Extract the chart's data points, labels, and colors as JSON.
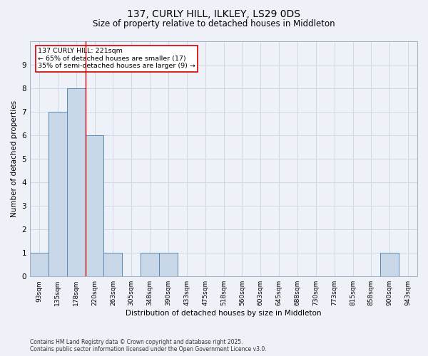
{
  "title1": "137, CURLY HILL, ILKLEY, LS29 0DS",
  "title2": "Size of property relative to detached houses in Middleton",
  "xlabel": "Distribution of detached houses by size in Middleton",
  "ylabel": "Number of detached properties",
  "categories": [
    "93sqm",
    "135sqm",
    "178sqm",
    "220sqm",
    "263sqm",
    "305sqm",
    "348sqm",
    "390sqm",
    "433sqm",
    "475sqm",
    "518sqm",
    "560sqm",
    "603sqm",
    "645sqm",
    "688sqm",
    "730sqm",
    "773sqm",
    "815sqm",
    "858sqm",
    "900sqm",
    "943sqm"
  ],
  "values": [
    1,
    7,
    8,
    6,
    1,
    0,
    1,
    1,
    0,
    0,
    0,
    0,
    0,
    0,
    0,
    0,
    0,
    0,
    0,
    1,
    0
  ],
  "bar_color": "#c8d8e8",
  "bar_edge_color": "#5a8ab0",
  "vline_color": "#cc0000",
  "annotation_text": "137 CURLY HILL: 221sqm\n← 65% of detached houses are smaller (17)\n35% of semi-detached houses are larger (9) →",
  "annotation_box_color": "#ffffff",
  "annotation_box_edge": "#cc0000",
  "ylim": [
    0,
    10
  ],
  "yticks": [
    0,
    1,
    2,
    3,
    4,
    5,
    6,
    7,
    8,
    9,
    10
  ],
  "grid_color": "#d0d8e8",
  "background_color": "#eef2f8",
  "footnote1": "Contains HM Land Registry data © Crown copyright and database right 2025.",
  "footnote2": "Contains public sector information licensed under the Open Government Licence v3.0."
}
